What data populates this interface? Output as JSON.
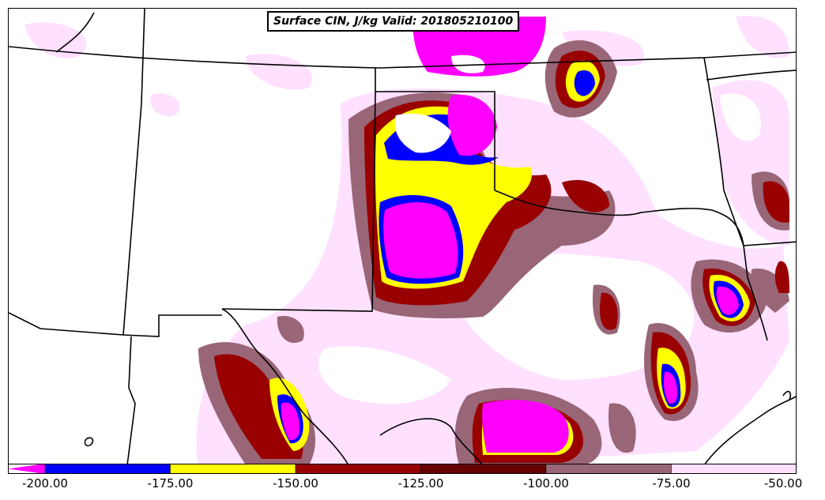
{
  "title": {
    "text": "Surface CIN, J/kg Valid: 201805210100"
  },
  "colors": {
    "le_-200": "#ff00ff",
    "-200_-175": "#0000ff",
    "-175_-150": "#ffff00",
    "-150_-125": "#990000",
    "-125_-100": "#660000",
    "-100_-75": "#996677",
    "-75_-50": "#ffe0ff",
    "boundary": "#000000",
    "background": "#ffffff"
  },
  "colorbar": {
    "ticks": [
      "-200.00",
      "-175.00",
      "-150.00",
      "-125.00",
      "-100.00",
      "-75.00",
      "-50.00"
    ],
    "bins": [
      {
        "color": "#0000ff",
        "from": -200,
        "to": -175
      },
      {
        "color": "#ffff00",
        "from": -175,
        "to": -150
      },
      {
        "color": "#990000",
        "from": -150,
        "to": -125
      },
      {
        "color": "#660000",
        "from": -125,
        "to": -100
      },
      {
        "color": "#996677",
        "from": -100,
        "to": -75
      },
      {
        "color": "#ffe0ff",
        "from": -75,
        "to": -50
      }
    ],
    "extend_low_color": "#ff00ff"
  }
}
